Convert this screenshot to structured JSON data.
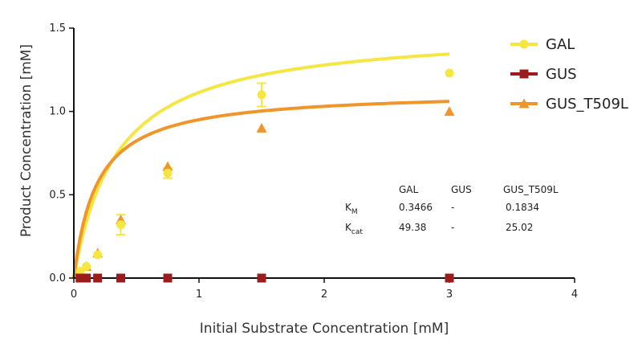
{
  "chart_data": {
    "type": "scatter",
    "xlabel": "Initial Substrate Concentration [mM]",
    "ylabel": "Product Concentration [mM]",
    "xlim": [
      0,
      4
    ],
    "ylim": [
      0,
      1.5
    ],
    "x_ticks": [
      "0",
      "1",
      "2",
      "3",
      "4"
    ],
    "y_ticks": [
      "0.0",
      "0.5",
      "1.0",
      "1.5"
    ],
    "grid": false,
    "legend_position": "top-right",
    "series": [
      {
        "name": "GAL",
        "color": "#F6E642",
        "marker": "circle",
        "x": [
          0.05,
          0.1,
          0.19,
          0.375,
          0.75,
          1.5,
          3.0
        ],
        "y": [
          0.04,
          0.07,
          0.14,
          0.32,
          0.63,
          1.1,
          1.23
        ],
        "err": [
          0,
          0,
          0,
          0.06,
          0.03,
          0.07,
          0
        ],
        "fit": {
          "model": "Michaelis-Menten",
          "vmax": 1.5,
          "km": 0.3466
        }
      },
      {
        "name": "GUS",
        "color": "#9B1C1C",
        "marker": "square",
        "x": [
          0.05,
          0.1,
          0.19,
          0.375,
          0.75,
          1.5,
          3.0
        ],
        "y": [
          0,
          0,
          0,
          0,
          0,
          0,
          0
        ],
        "err": [
          0,
          0,
          0,
          0,
          0,
          0,
          0
        ]
      },
      {
        "name": "GUS_T509L",
        "color": "#F0952A",
        "marker": "triangle",
        "x": [
          0.05,
          0.1,
          0.19,
          0.375,
          0.75,
          1.5,
          3.0
        ],
        "y": [
          0.04,
          0.07,
          0.15,
          0.35,
          0.67,
          0.9,
          1.0
        ],
        "err": [
          0,
          0,
          0,
          0,
          0,
          0,
          0
        ],
        "fit": {
          "model": "Michaelis-Menten",
          "vmax": 1.125,
          "km": 0.1834
        }
      }
    ]
  },
  "kinetics_table": {
    "headers": [
      "GAL",
      "GUS",
      "GUS_T509L"
    ],
    "rows": [
      {
        "label": "K",
        "sub": "M",
        "values": [
          "0.3466",
          "-",
          "0.1834"
        ]
      },
      {
        "label": "K",
        "sub": "cat",
        "values": [
          "49.38",
          "-",
          "25.02"
        ]
      }
    ]
  }
}
